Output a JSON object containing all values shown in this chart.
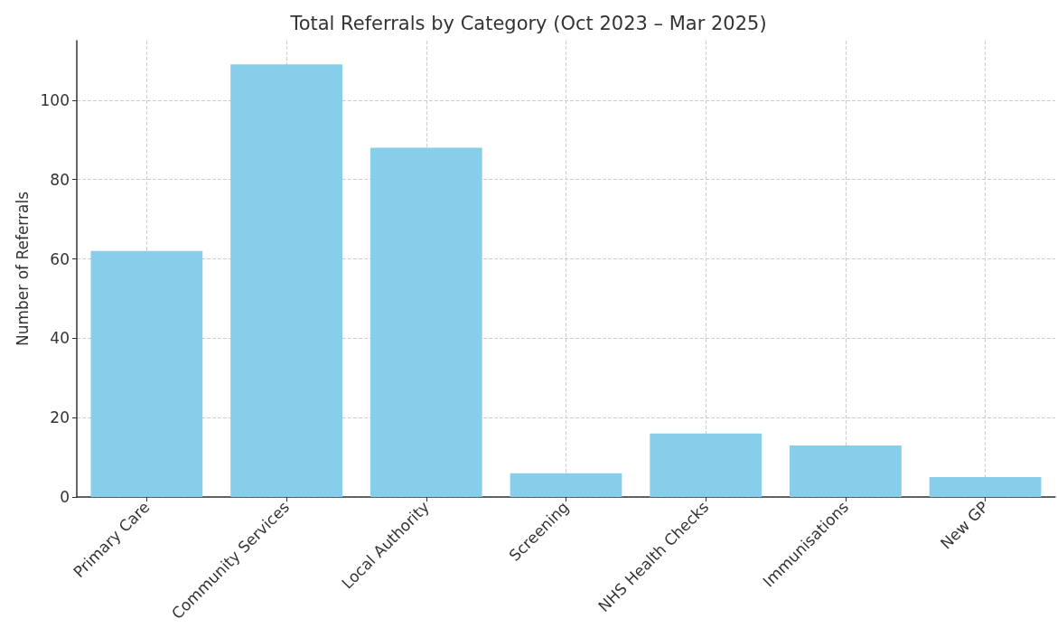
{
  "chart_data": {
    "type": "bar",
    "title": "Total Referrals by Category (Oct 2023 – Mar 2025)",
    "ylabel": "Number of Referrals",
    "categories": [
      "Primary Care",
      "Community Services",
      "Local Authority",
      "Screening",
      "NHS Health Checks",
      "Immunisations",
      "New GP"
    ],
    "values": [
      62,
      109,
      88,
      6,
      16,
      13,
      5
    ],
    "color": "#87ceeb",
    "ylim": [
      0,
      115
    ],
    "yticks": [
      0,
      20,
      40,
      60,
      80,
      100
    ],
    "grid": true
  }
}
